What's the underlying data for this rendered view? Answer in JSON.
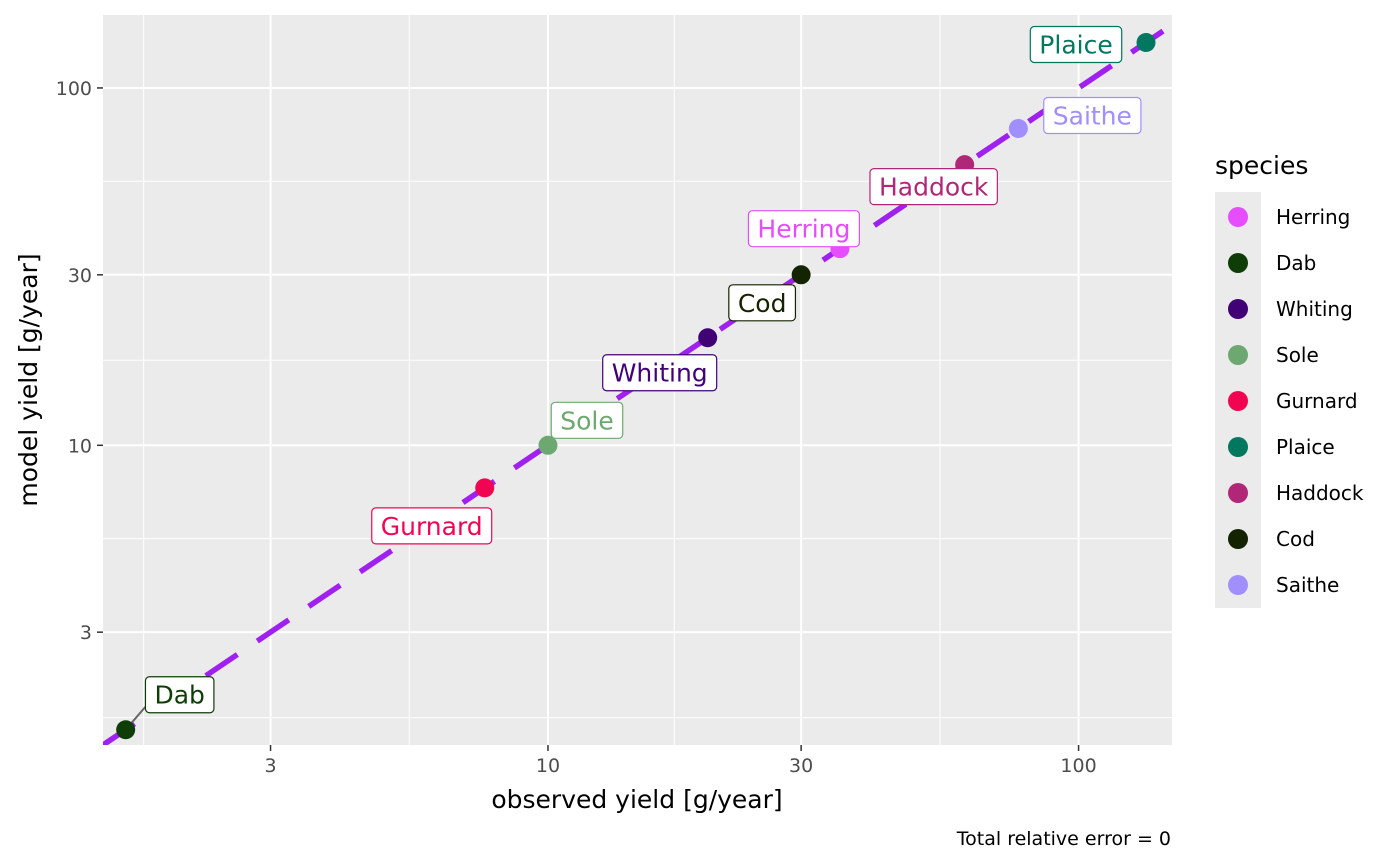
{
  "chart_data": {
    "type": "scatter",
    "title": "",
    "xlabel": "observed yield [g/year]",
    "ylabel": "model yield [g/year]",
    "x_scale": "log10",
    "y_scale": "log10",
    "xlim": [
      1.45,
      150
    ],
    "ylim": [
      1.45,
      160
    ],
    "x_ticks": [
      3,
      10,
      30,
      100
    ],
    "y_ticks": [
      3,
      10,
      30,
      100
    ],
    "x_minor_ticks": [
      1.73,
      5.48,
      17.3,
      54.8
    ],
    "y_minor_ticks": [
      1.73,
      5.48,
      17.3,
      54.8
    ],
    "grid": true,
    "reference_line": {
      "type": "identity",
      "style": "dashed",
      "color": "#A020F0"
    },
    "caption": "Total relative error = 0",
    "legend": {
      "title": "species",
      "position": "right"
    },
    "points": [
      {
        "species": "Herring",
        "x": 35.5,
        "y": 35.5,
        "color": "#E64DFF",
        "label_dx": -36,
        "label_dy": -20,
        "leader": false
      },
      {
        "species": "Dab",
        "x": 1.6,
        "y": 1.6,
        "color": "#0E3D07",
        "label_dx": 54,
        "label_dy": -35,
        "leader": true
      },
      {
        "species": "Whiting",
        "x": 20,
        "y": 20,
        "color": "#410276",
        "label_dx": -48,
        "label_dy": 35,
        "leader": false
      },
      {
        "species": "Sole",
        "x": 10,
        "y": 10,
        "color": "#6DA870",
        "label_dx": 39,
        "label_dy": -25,
        "leader": false
      },
      {
        "species": "Gurnard",
        "x": 7.6,
        "y": 7.6,
        "color": "#F10552",
        "label_dx": -53,
        "label_dy": 38,
        "leader": false
      },
      {
        "species": "Plaice",
        "x": 134,
        "y": 134,
        "color": "#00775F",
        "label_dx": -70,
        "label_dy": 2,
        "leader": false
      },
      {
        "species": "Haddock",
        "x": 61,
        "y": 61,
        "color": "#B02778",
        "label_dx": -31,
        "label_dy": 22,
        "leader": false
      },
      {
        "species": "Cod",
        "x": 30,
        "y": 30,
        "color": "#142300",
        "label_dx": -39,
        "label_dy": 28,
        "leader": false
      },
      {
        "species": "Saithe",
        "x": 77,
        "y": 77,
        "color": "#A18EFF",
        "label_dx": 74,
        "label_dy": -13,
        "leader": false
      }
    ]
  }
}
